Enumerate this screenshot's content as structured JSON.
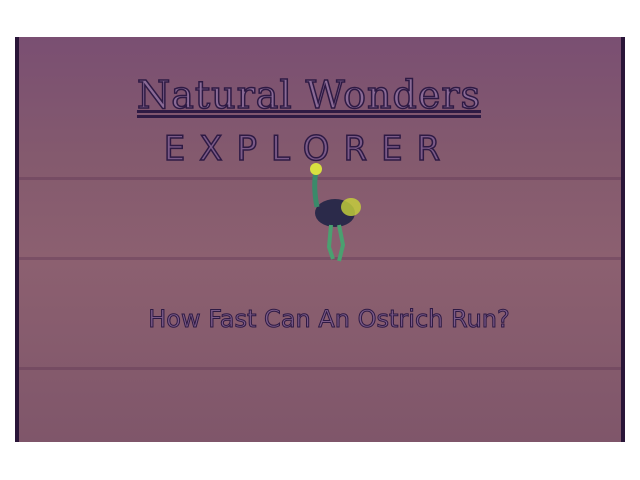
{
  "header": {
    "title": "Natural Wonders",
    "subtitle": "EXPLORER"
  },
  "question": "How Fast Can An Ostrich Run?"
}
